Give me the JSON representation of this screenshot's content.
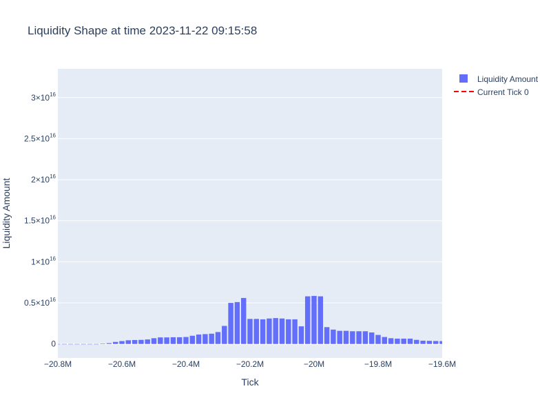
{
  "chart_data": {
    "type": "bar",
    "title": "Liquidity Shape at time 2023-11-22 09:15:58",
    "xlabel": "Tick",
    "ylabel": "Liquidity Amount",
    "xlim": [
      -20800000,
      -19600000
    ],
    "ylim": [
      -1700000000000000,
      33500000000000000
    ],
    "grid": true,
    "legend_position": "top-right",
    "x_ticks": [
      {
        "value": -20800000,
        "label": "−20.8M"
      },
      {
        "value": -20600000,
        "label": "−20.6M"
      },
      {
        "value": -20400000,
        "label": "−20.4M"
      },
      {
        "value": -20200000,
        "label": "−20.2M"
      },
      {
        "value": -20000000,
        "label": "−20M"
      },
      {
        "value": -19800000,
        "label": "−19.8M"
      },
      {
        "value": -19600000,
        "label": "−19.6M"
      }
    ],
    "y_ticks": [
      {
        "value": 0,
        "mantissa": "0",
        "exp": ""
      },
      {
        "value": 5000000000000000,
        "mantissa": "0.5×10",
        "exp": "16"
      },
      {
        "value": 10000000000000000,
        "mantissa": "1×10",
        "exp": "16"
      },
      {
        "value": 15000000000000000,
        "mantissa": "1.5×10",
        "exp": "16"
      },
      {
        "value": 20000000000000000,
        "mantissa": "2×10",
        "exp": "16"
      },
      {
        "value": 25000000000000000,
        "mantissa": "2.5×10",
        "exp": "16"
      },
      {
        "value": 30000000000000000,
        "mantissa": "3×10",
        "exp": "16"
      }
    ],
    "bar_width": 16000,
    "series": [
      {
        "name": "Liquidity Amount",
        "color": "#636efa",
        "x": [
          -20800000,
          -20780000,
          -20760000,
          -20740000,
          -20720000,
          -20700000,
          -20680000,
          -20660000,
          -20640000,
          -20620000,
          -20600000,
          -20580000,
          -20560000,
          -20540000,
          -20520000,
          -20500000,
          -20480000,
          -20460000,
          -20440000,
          -20420000,
          -20400000,
          -20380000,
          -20360000,
          -20340000,
          -20320000,
          -20300000,
          -20280000,
          -20260000,
          -20240000,
          -20220000,
          -20200000,
          -20180000,
          -20160000,
          -20140000,
          -20120000,
          -20100000,
          -20080000,
          -20060000,
          -20040000,
          -20020000,
          -20000000,
          -19980000,
          -19960000,
          -19940000,
          -19920000,
          -19900000,
          -19880000,
          -19860000,
          -19840000,
          -19820000,
          -19800000,
          -19780000,
          -19760000,
          -19740000,
          -19720000,
          -19700000,
          -19680000,
          -19660000,
          -19640000,
          -19620000,
          -19600000
        ],
        "values": [
          0,
          0,
          0,
          0,
          0,
          0,
          0,
          50000000000000.0,
          100000000000000.0,
          250000000000000.0,
          350000000000000.0,
          450000000000000.0,
          480000000000000.0,
          500000000000000.0,
          550000000000000.0,
          700000000000000.0,
          800000000000000.0,
          800000000000000.0,
          820000000000000.0,
          820000000000000.0,
          850000000000000.0,
          1000000000000000.0,
          1150000000000000.0,
          1200000000000000.0,
          1250000000000000.0,
          1450000000000000.0,
          2200000000000000.0,
          5000000000000000.0,
          5100000000000000.0,
          5600000000000000.0,
          3050000000000000.0,
          3050000000000000.0,
          3000000000000000.0,
          3100000000000000.0,
          3150000000000000.0,
          3100000000000000.0,
          3000000000000000.0,
          3000000000000000.0,
          2150000000000000.0,
          5800000000000000.0,
          5850000000000000.0,
          5800000000000000.0,
          2050000000000000.0,
          1750000000000000.0,
          1600000000000000.0,
          1600000000000000.0,
          1550000000000000.0,
          1550000000000000.0,
          1550000000000000.0,
          1400000000000000.0,
          1100000000000000.0,
          850000000000000.0,
          700000000000000.0,
          650000000000000.0,
          650000000000000.0,
          650000000000000.0,
          500000000000000.0,
          400000000000000.0,
          380000000000000.0,
          360000000000000.0,
          350000000000000.0
        ]
      },
      {
        "name": "Current Tick 0",
        "type": "vline",
        "x": 0,
        "color": "#ff0000",
        "dash": "dash"
      }
    ]
  }
}
